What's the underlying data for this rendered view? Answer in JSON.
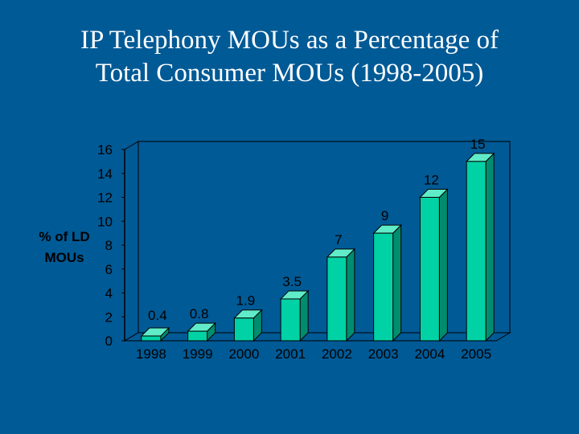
{
  "title_line1": "IP Telephony MOUs as a Percentage of",
  "title_line2": "Total Consumer MOUs (1998-2005)",
  "colors": {
    "background": "#005a96",
    "bar_front": "#00d2a5",
    "bar_top": "#60ecc8",
    "bar_side": "#008c6e",
    "wall": "#005a96",
    "text": "#000000",
    "title_text": "#ffffff"
  },
  "chart_data": {
    "type": "bar",
    "title": "IP Telephony MOUs as a Percentage of Total Consumer MOUs (1998-2005)",
    "ylabel": "% of LD MOUs",
    "xlabel": "",
    "categories": [
      "1998",
      "1999",
      "2000",
      "2001",
      "2002",
      "2003",
      "2004",
      "2005"
    ],
    "values": [
      0.4,
      0.8,
      1.9,
      3.5,
      7,
      9,
      12,
      15
    ],
    "data_labels": [
      "0.4",
      "0.8",
      "1.9",
      "3.5",
      "7",
      "9",
      "12",
      "15"
    ],
    "yticks": [
      "0",
      "2",
      "4",
      "6",
      "8",
      "10",
      "12",
      "14",
      "16"
    ],
    "ylim": [
      0,
      16
    ],
    "grid": false,
    "legend": "none",
    "style": "3d"
  }
}
